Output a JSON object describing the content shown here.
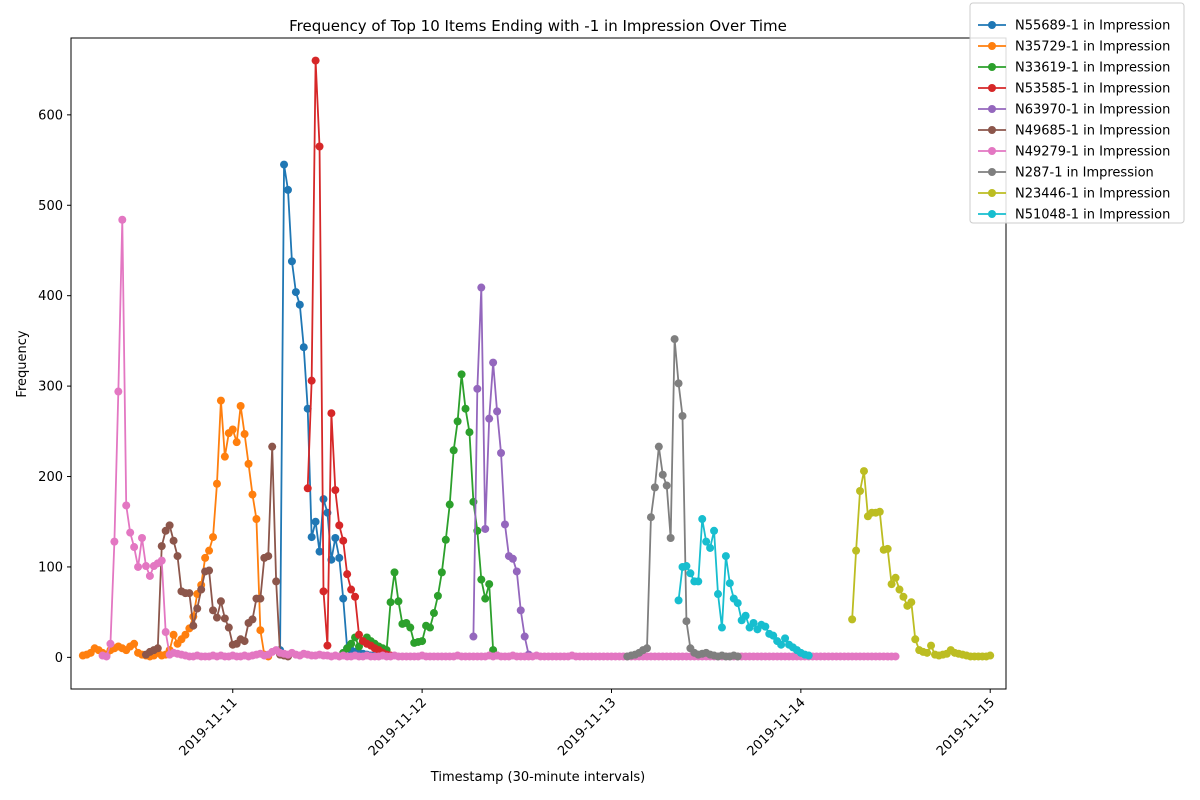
{
  "chart_data": {
    "type": "line",
    "title": "Frequency of Top 10 Items Ending with -1 in Impression Over Time",
    "xlabel": "Timestamp (30-minute intervals)",
    "ylabel": "Frequency",
    "x_range": [
      "2019-11-10 03:30",
      "2019-11-15 02:00"
    ],
    "ylim": [
      -35,
      685
    ],
    "x_ticks": [
      {
        "at": "2019-11-11 00:00",
        "label": "2019-11-11"
      },
      {
        "at": "2019-11-12 00:00",
        "label": "2019-11-12"
      },
      {
        "at": "2019-11-13 00:00",
        "label": "2019-11-13"
      },
      {
        "at": "2019-11-14 00:00",
        "label": "2019-11-14"
      },
      {
        "at": "2019-11-15 00:00",
        "label": "2019-11-15"
      }
    ],
    "y_ticks": [
      0,
      100,
      200,
      300,
      400,
      500,
      600
    ],
    "legend_position": "top-right",
    "grid": false,
    "series": [
      {
        "name": "N55689-1 in Impression",
        "color": "#1f77b4",
        "start": "2019-11-11 06:00",
        "values": [
          8,
          545,
          517,
          438,
          404,
          390,
          343,
          275,
          133,
          150,
          117,
          175,
          160,
          108,
          132,
          110,
          65,
          10,
          8,
          6,
          5,
          4,
          3,
          2,
          2
        ]
      },
      {
        "name": "N35729-1 in Impression",
        "color": "#ff7f0e",
        "start": "2019-11-10 05:00",
        "values": [
          2,
          3,
          5,
          10,
          8,
          5,
          3,
          8,
          10,
          12,
          10,
          8,
          12,
          15,
          5,
          3,
          2,
          1,
          2,
          5,
          2,
          3,
          8,
          25,
          15,
          20,
          25,
          32,
          45,
          70,
          80,
          110,
          118,
          133,
          192,
          284,
          222,
          248,
          252,
          238,
          278,
          247,
          214,
          180,
          153,
          30,
          3,
          1
        ]
      },
      {
        "name": "N33619-1 in Impression",
        "color": "#2ca02c",
        "start": "2019-11-11 14:00",
        "values": [
          5,
          10,
          15,
          22,
          12,
          18,
          22,
          18,
          15,
          12,
          10,
          8,
          61,
          94,
          62,
          37,
          38,
          33,
          16,
          17,
          18,
          35,
          33,
          49,
          68,
          94,
          130,
          169,
          229,
          261,
          313,
          275,
          249,
          172,
          140,
          86,
          65,
          81,
          8,
          2
        ]
      },
      {
        "name": "N53585-1 in Impression",
        "color": "#d62728",
        "start": "2019-11-11 09:30",
        "values": [
          187,
          306,
          660,
          565,
          73,
          13,
          270,
          185,
          146,
          129,
          92,
          75,
          67,
          25,
          18,
          15,
          13,
          10,
          8,
          5,
          3,
          2
        ]
      },
      {
        "name": "N63970-1 in Impression",
        "color": "#9467bd",
        "start": "2019-11-12 06:30",
        "values": [
          23,
          297,
          409,
          142,
          264,
          326,
          272,
          226,
          147,
          112,
          109,
          95,
          52,
          23,
          3
        ]
      },
      {
        "name": "N49685-1 in Impression",
        "color": "#8c564b",
        "start": "2019-11-10 13:00",
        "values": [
          3,
          6,
          8,
          10,
          123,
          140,
          146,
          129,
          112,
          73,
          71,
          71,
          35,
          54,
          75,
          95,
          96,
          52,
          44,
          62,
          43,
          33,
          14,
          15,
          20,
          18,
          38,
          42,
          65,
          65,
          110,
          112,
          233,
          84,
          3,
          2,
          1
        ]
      },
      {
        "name": "N49279-1 in Impression",
        "color": "#e377c2",
        "start": "2019-11-10 07:30",
        "values": [
          2,
          1,
          15,
          128,
          294,
          484,
          168,
          138,
          122,
          100,
          132,
          101,
          90,
          101,
          104,
          107,
          28,
          3,
          5,
          4,
          3,
          2,
          1,
          1,
          2,
          1,
          1,
          1,
          2,
          1,
          2,
          1,
          1,
          2,
          1,
          1,
          2,
          1,
          2,
          3,
          4,
          2,
          3,
          6,
          8,
          5,
          4,
          3,
          5,
          3,
          2,
          4,
          3,
          2,
          2,
          3,
          2,
          2,
          1,
          2,
          1,
          2,
          1,
          1,
          2,
          1,
          1,
          2,
          1,
          1,
          1,
          2,
          1,
          1,
          2,
          1,
          1,
          1,
          1,
          1,
          1,
          2,
          1,
          1,
          1,
          1,
          1,
          1,
          1,
          1,
          2,
          1,
          1,
          1,
          1,
          1,
          1,
          1,
          2,
          1,
          2,
          1,
          1,
          1,
          2,
          1,
          1,
          1,
          1,
          1,
          2,
          1,
          1,
          1,
          1,
          1,
          1,
          1,
          1,
          2,
          1,
          1,
          1,
          1,
          1,
          1,
          1,
          1,
          1,
          1,
          1,
          1,
          1,
          1,
          1,
          1,
          1,
          1,
          1,
          1,
          1,
          1,
          1,
          1,
          1,
          1,
          1,
          1,
          1,
          1,
          1,
          1,
          1,
          1,
          1,
          1,
          1,
          1,
          1,
          1,
          1,
          1,
          1,
          1,
          1,
          1,
          1,
          1,
          1,
          1,
          1,
          1,
          1,
          1,
          1,
          1,
          1,
          1,
          1,
          1,
          1,
          1,
          1,
          1,
          1,
          1,
          1,
          1,
          1,
          1,
          1,
          1,
          1,
          1,
          1,
          1,
          1,
          1,
          1,
          1,
          1,
          1
        ]
      },
      {
        "name": "N287-1 in Impression",
        "color": "#7f7f7f",
        "start": "2019-11-13 02:00",
        "values": [
          1,
          2,
          3,
          5,
          8,
          10,
          155,
          188,
          233,
          202,
          190,
          132,
          352,
          303,
          267,
          40,
          10,
          5,
          3,
          4,
          5,
          3,
          2,
          1,
          2,
          1,
          1,
          2,
          1
        ]
      },
      {
        "name": "N23446-1 in Impression",
        "color": "#bcbd22",
        "start": "2019-11-14 06:30",
        "values": [
          42,
          118,
          184,
          206,
          156,
          160,
          160,
          161,
          119,
          120,
          81,
          88,
          75,
          67,
          57,
          61,
          20,
          8,
          6,
          5,
          13,
          3,
          2,
          3,
          4,
          8,
          5,
          4,
          3,
          2,
          1,
          1,
          1,
          1,
          1,
          2
        ]
      },
      {
        "name": "N51048-1 in Impression",
        "color": "#17becf",
        "start": "2019-11-13 08:30",
        "values": [
          63,
          100,
          101,
          93,
          84,
          84,
          153,
          128,
          121,
          140,
          70,
          33,
          112,
          82,
          65,
          60,
          41,
          46,
          33,
          38,
          31,
          36,
          34,
          26,
          24,
          18,
          14,
          21,
          14,
          11,
          8,
          5,
          3,
          2
        ]
      }
    ]
  }
}
